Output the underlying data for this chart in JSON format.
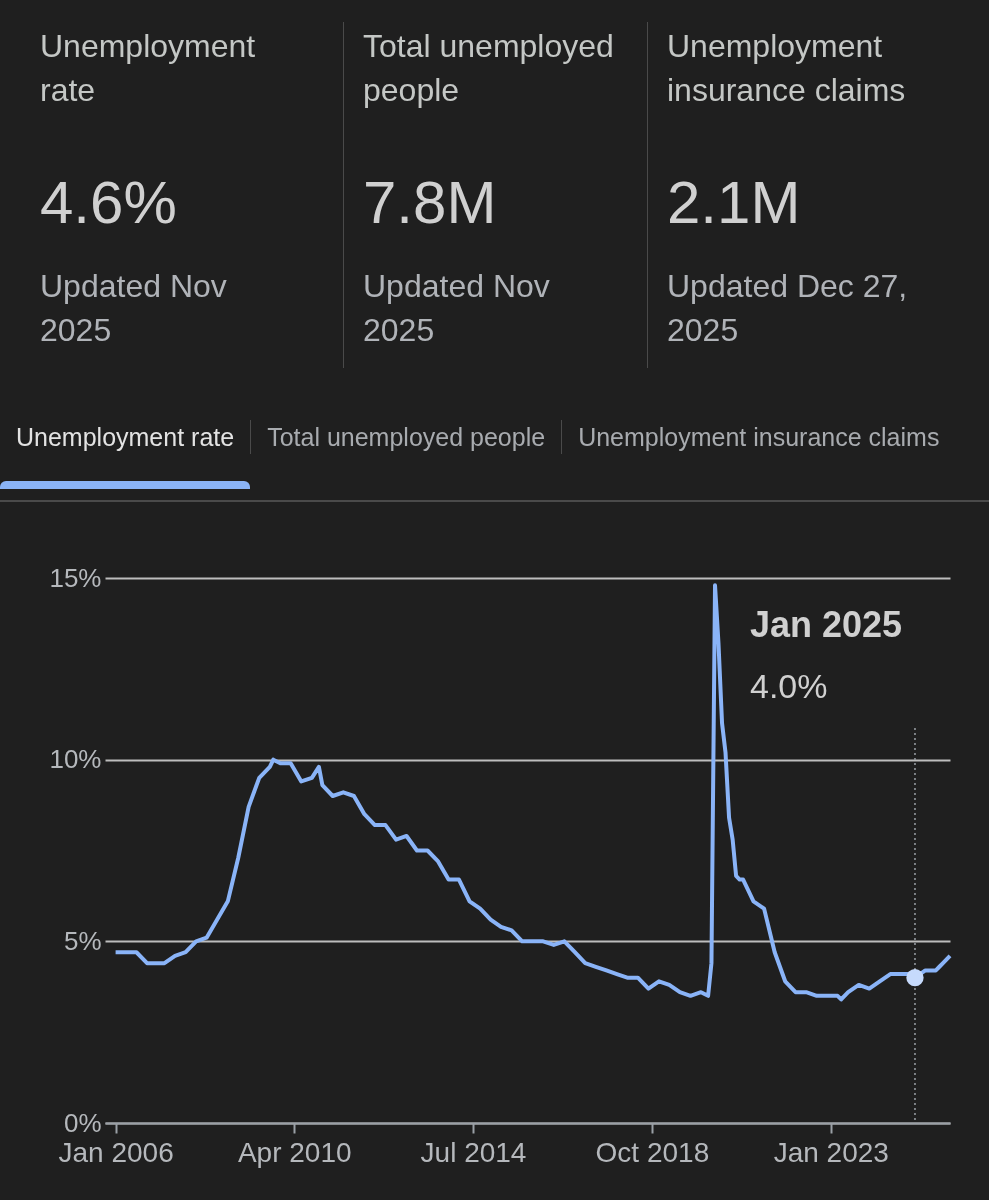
{
  "chart_data": [
    {
      "type": "other",
      "annotations": [
        "Unemployment rate",
        "4.6%",
        "Updated Nov 2025",
        "Total unemployed people",
        "7.8M",
        "Updated Nov 2025",
        "Unemployment insurance claims",
        "2.1M",
        "Updated Dec 27, 2025",
        "Unemployment rate",
        "Total unemployed people",
        "Unemployment insurance claims"
      ]
    },
    {
      "type": "line",
      "grid": "y",
      "legend": false,
      "line_style": "solid",
      "xlim": [
        "2005-10",
        "2025-11"
      ],
      "xticks": [
        {
          "value": "2006-01",
          "label": "Jan 2006"
        },
        {
          "value": "2010-04",
          "label": "Apr 2010"
        },
        {
          "value": "2014-07",
          "label": "Jul 2014"
        },
        {
          "value": "2018-10",
          "label": "Oct 2018"
        },
        {
          "value": "2023-01",
          "label": "Jan 2023"
        }
      ],
      "ylim": [
        0,
        15
      ],
      "yticks": [
        {
          "value": 0,
          "label": "0%"
        },
        {
          "value": 5,
          "label": "5%"
        },
        {
          "value": 10,
          "label": "10%"
        },
        {
          "value": 15,
          "label": "15%"
        }
      ],
      "ref_lines": [
        {
          "axis": "x",
          "value": "2025-01",
          "line_style": "dotted",
          "color": "#9aa0a6"
        }
      ],
      "annotations": [
        "Jan 2025",
        "4.0%"
      ],
      "series": [
        {
          "type": "scatter",
          "marker": "circle",
          "color": "#c6dafc",
          "x": [
            "2025-01"
          ],
          "values": [
            4.0
          ]
        },
        {
          "color": "#8ab4f8",
          "x": [
            "2006-01",
            "2006-04",
            "2006-07",
            "2006-10",
            "2006-12",
            "2007-03",
            "2007-06",
            "2007-09",
            "2007-12",
            "2008-03",
            "2008-06",
            "2008-09",
            "2008-12",
            "2009-03",
            "2009-06",
            "2009-09",
            "2009-10",
            "2009-12",
            "2010-03",
            "2010-06",
            "2010-09",
            "2010-11",
            "2010-12",
            "2011-03",
            "2011-06",
            "2011-09",
            "2011-12",
            "2012-03",
            "2012-06",
            "2012-09",
            "2012-12",
            "2013-03",
            "2013-06",
            "2013-09",
            "2013-12",
            "2014-03",
            "2014-06",
            "2014-09",
            "2014-12",
            "2015-03",
            "2015-06",
            "2015-09",
            "2015-12",
            "2016-03",
            "2016-06",
            "2016-09",
            "2016-12",
            "2017-03",
            "2017-06",
            "2017-09",
            "2017-12",
            "2018-03",
            "2018-06",
            "2018-09",
            "2018-12",
            "2019-03",
            "2019-06",
            "2019-09",
            "2019-12",
            "2020-02",
            "2020-03",
            "2020-04",
            "2020-05",
            "2020-06",
            "2020-07",
            "2020-08",
            "2020-09",
            "2020-10",
            "2020-11",
            "2020-12",
            "2021-03",
            "2021-06",
            "2021-09",
            "2021-12",
            "2022-03",
            "2022-06",
            "2022-09",
            "2022-12",
            "2023-03",
            "2023-04",
            "2023-06",
            "2023-09",
            "2023-12",
            "2024-03",
            "2024-06",
            "2024-09",
            "2024-12",
            "2025-01",
            "2025-04",
            "2025-07",
            "2025-08",
            "2025-09",
            "2025-11"
          ],
          "values": [
            4.7,
            4.7,
            4.7,
            4.4,
            4.4,
            4.4,
            4.6,
            4.7,
            5.0,
            5.1,
            5.6,
            6.1,
            7.3,
            8.7,
            9.5,
            9.8,
            10.0,
            9.9,
            9.9,
            9.4,
            9.5,
            9.8,
            9.3,
            9.0,
            9.1,
            9.0,
            8.5,
            8.2,
            8.2,
            7.8,
            7.9,
            7.5,
            7.5,
            7.2,
            6.7,
            6.7,
            6.1,
            5.9,
            5.6,
            5.4,
            5.3,
            5.0,
            5.0,
            5.0,
            4.9,
            5.0,
            4.7,
            4.4,
            4.3,
            4.2,
            4.1,
            4.0,
            4.0,
            3.7,
            3.9,
            3.8,
            3.6,
            3.5,
            3.6,
            3.5,
            4.4,
            14.8,
            13.2,
            11.0,
            10.2,
            8.4,
            7.8,
            6.8,
            6.7,
            6.7,
            6.1,
            5.9,
            4.7,
            3.9,
            3.6,
            3.6,
            3.5,
            3.5,
            3.5,
            3.4,
            3.6,
            3.8,
            3.7,
            3.9,
            4.1,
            4.1,
            4.1,
            4.0,
            4.2,
            4.2,
            4.3,
            4.4,
            4.6
          ]
        }
      ]
    }
  ]
}
